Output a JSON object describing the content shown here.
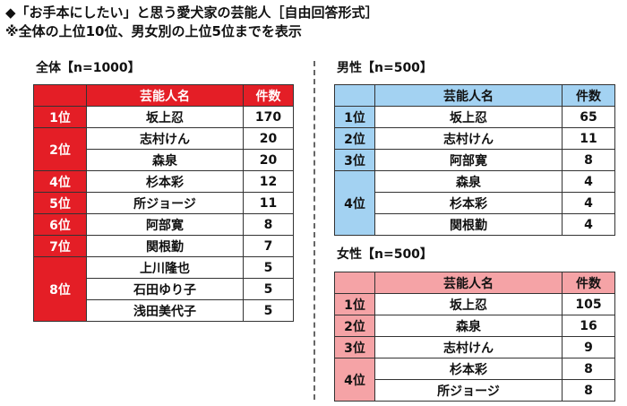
{
  "header": {
    "title": "◆「お手本にしたい」と思う愛犬家の芸能人［自由回答形式］",
    "subtitle": "※全体の上位10位、男女別の上位5位までを表示"
  },
  "tables": [
    {
      "label": "全体【n=1000】",
      "columns": [
        "芸能人名",
        "件数"
      ],
      "groups": [
        {
          "rank": "1位",
          "rows": [
            {
              "name": "坂上忍",
              "count": 170
            }
          ]
        },
        {
          "rank": "2位",
          "rows": [
            {
              "name": "志村けん",
              "count": 20
            },
            {
              "name": "森泉",
              "count": 20
            }
          ]
        },
        {
          "rank": "4位",
          "rows": [
            {
              "name": "杉本彩",
              "count": 12
            }
          ]
        },
        {
          "rank": "5位",
          "rows": [
            {
              "name": "所ジョージ",
              "count": 11
            }
          ]
        },
        {
          "rank": "6位",
          "rows": [
            {
              "name": "阿部寛",
              "count": 8
            }
          ]
        },
        {
          "rank": "7位",
          "rows": [
            {
              "name": "関根勤",
              "count": 7
            }
          ]
        },
        {
          "rank": "8位",
          "rows": [
            {
              "name": "上川隆也",
              "count": 5
            },
            {
              "name": "石田ゆり子",
              "count": 5
            },
            {
              "name": "浅田美代子",
              "count": 5
            }
          ]
        }
      ]
    },
    {
      "label": "男性【n=500】",
      "columns": [
        "芸能人名",
        "件数"
      ],
      "groups": [
        {
          "rank": "1位",
          "rows": [
            {
              "name": "坂上忍",
              "count": 65
            }
          ]
        },
        {
          "rank": "2位",
          "rows": [
            {
              "name": "志村けん",
              "count": 11
            }
          ]
        },
        {
          "rank": "3位",
          "rows": [
            {
              "name": "阿部寛",
              "count": 8
            }
          ]
        },
        {
          "rank": "4位",
          "rows": [
            {
              "name": "森泉",
              "count": 4
            },
            {
              "name": "杉本彩",
              "count": 4
            },
            {
              "name": "関根勤",
              "count": 4
            }
          ]
        }
      ]
    },
    {
      "label": "女性【n=500】",
      "columns": [
        "芸能人名",
        "件数"
      ],
      "groups": [
        {
          "rank": "1位",
          "rows": [
            {
              "name": "坂上忍",
              "count": 105
            }
          ]
        },
        {
          "rank": "2位",
          "rows": [
            {
              "name": "森泉",
              "count": 16
            }
          ]
        },
        {
          "rank": "3位",
          "rows": [
            {
              "name": "志村けん",
              "count": 9
            }
          ]
        },
        {
          "rank": "4位",
          "rows": [
            {
              "name": "杉本彩",
              "count": 8
            },
            {
              "name": "所ジョージ",
              "count": 8
            }
          ]
        }
      ]
    }
  ]
}
